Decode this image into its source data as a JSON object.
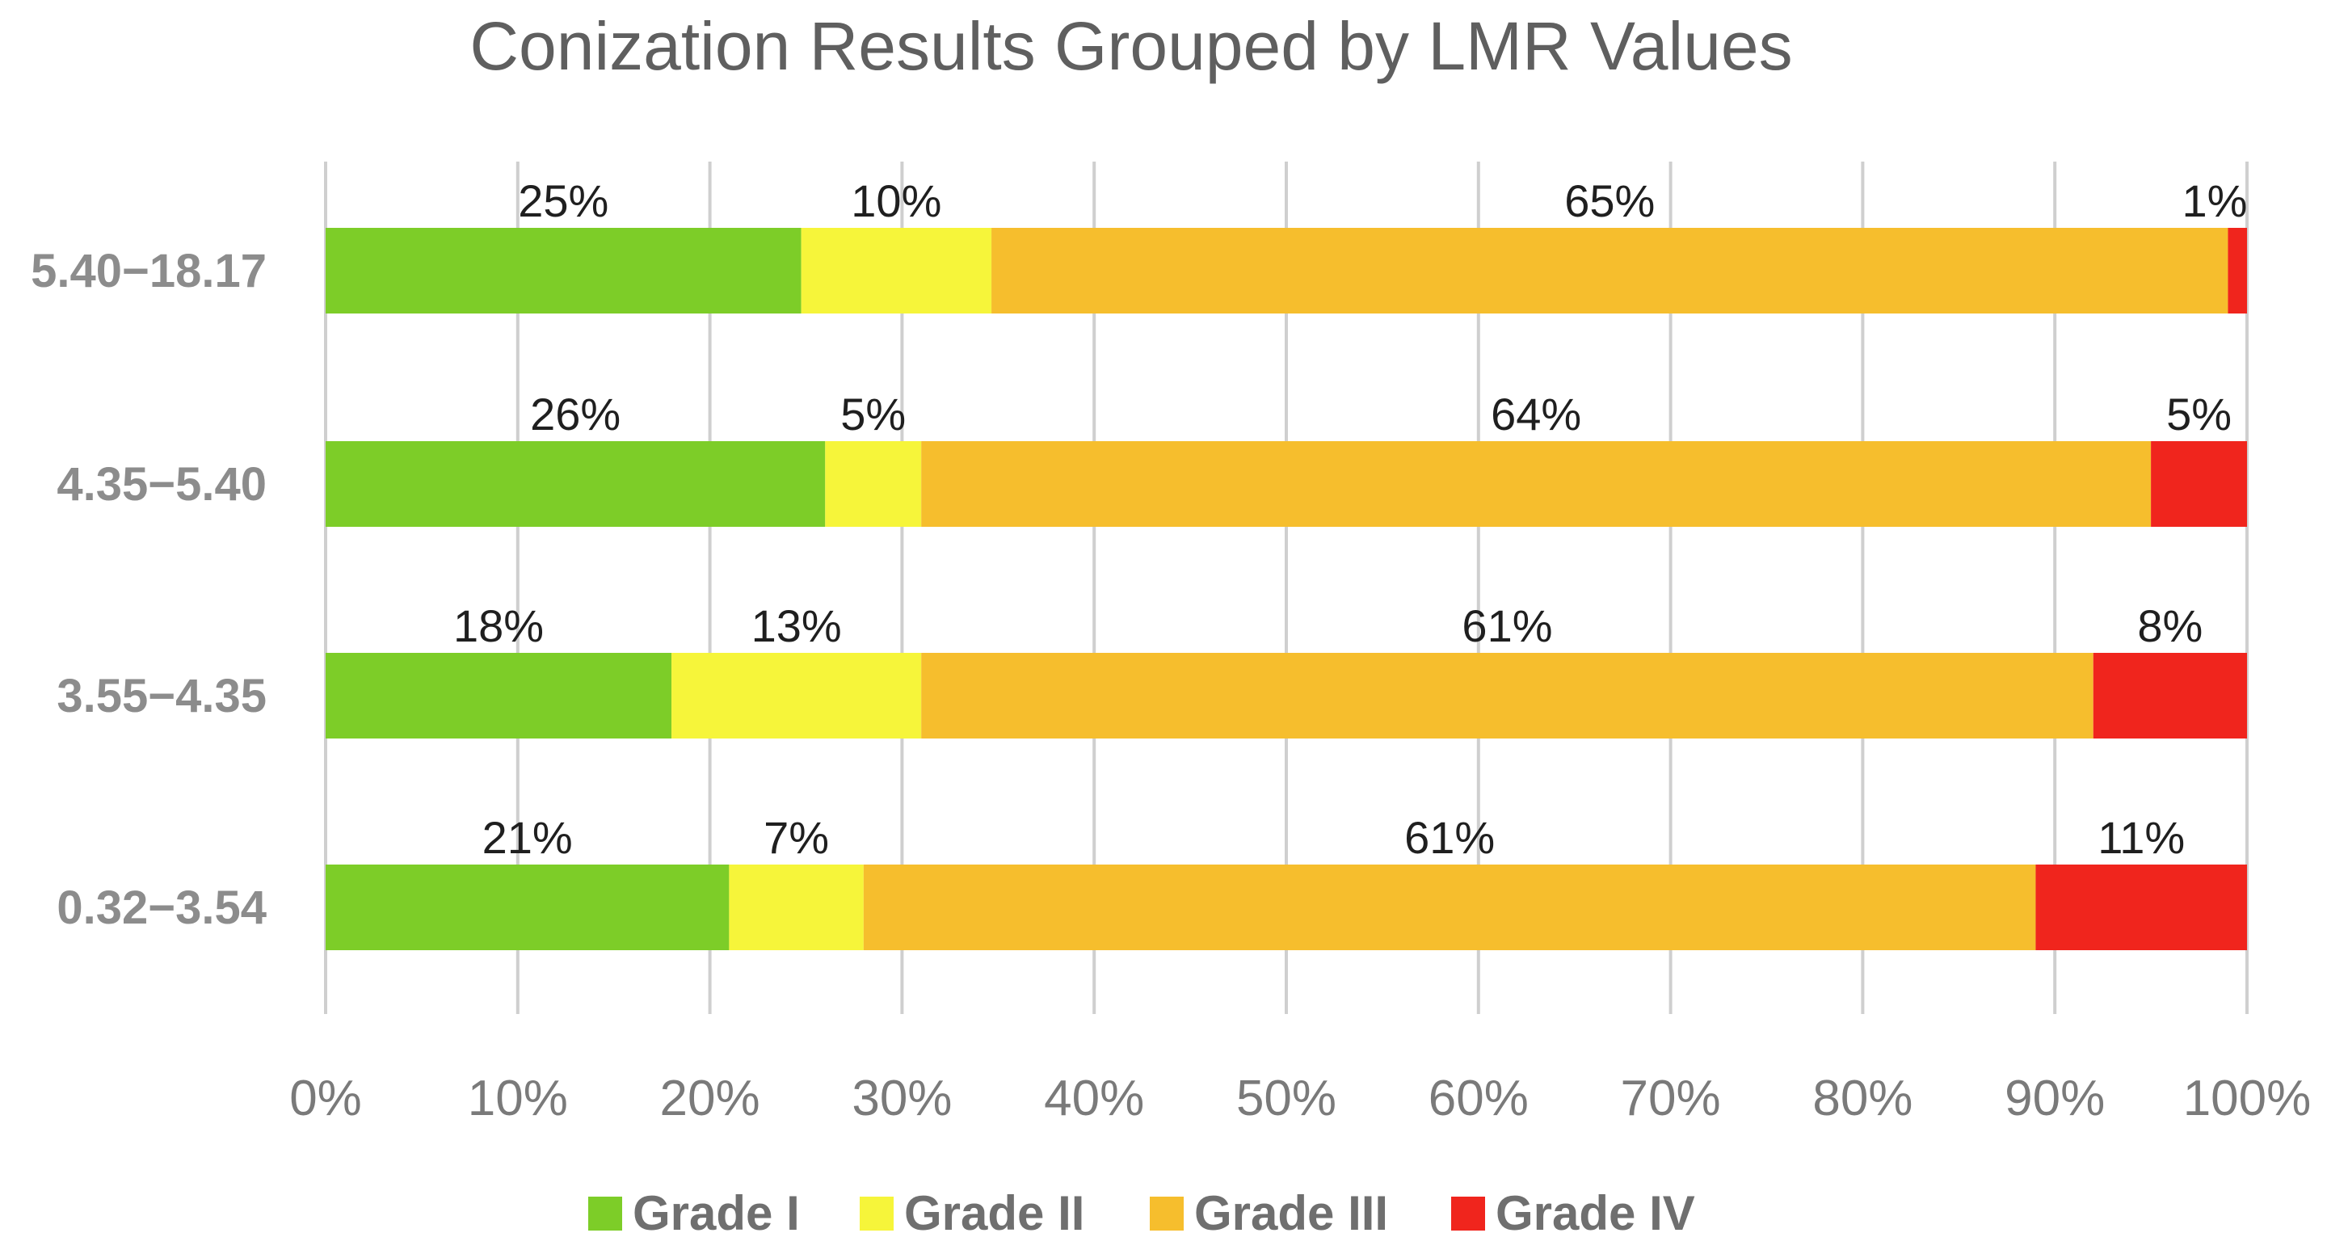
{
  "chart_data": {
    "type": "bar",
    "orientation": "horizontal",
    "stacked": "percent",
    "title": "Conization Results Grouped by LMR Values",
    "categories": [
      "5.40−18.17",
      "4.35−5.40",
      "3.55−4.35",
      "0.32−3.54"
    ],
    "series": [
      {
        "name": "Grade I",
        "color": "#7dcd28",
        "values": [
          25,
          26,
          18,
          21
        ]
      },
      {
        "name": "Grade II",
        "color": "#f6f53a",
        "values": [
          10,
          5,
          13,
          7
        ]
      },
      {
        "name": "Grade III",
        "color": "#f6be2d",
        "values": [
          65,
          64,
          61,
          61
        ]
      },
      {
        "name": "Grade IV",
        "color": "#f0251d",
        "values": [
          1,
          5,
          8,
          11
        ]
      }
    ],
    "data_label_suffix": "%",
    "xlim": [
      0,
      100
    ],
    "xticks": [
      "0%",
      "10%",
      "20%",
      "30%",
      "40%",
      "50%",
      "60%",
      "70%",
      "80%",
      "90%",
      "100%"
    ],
    "grid": "vertical",
    "legend": "bottom"
  }
}
